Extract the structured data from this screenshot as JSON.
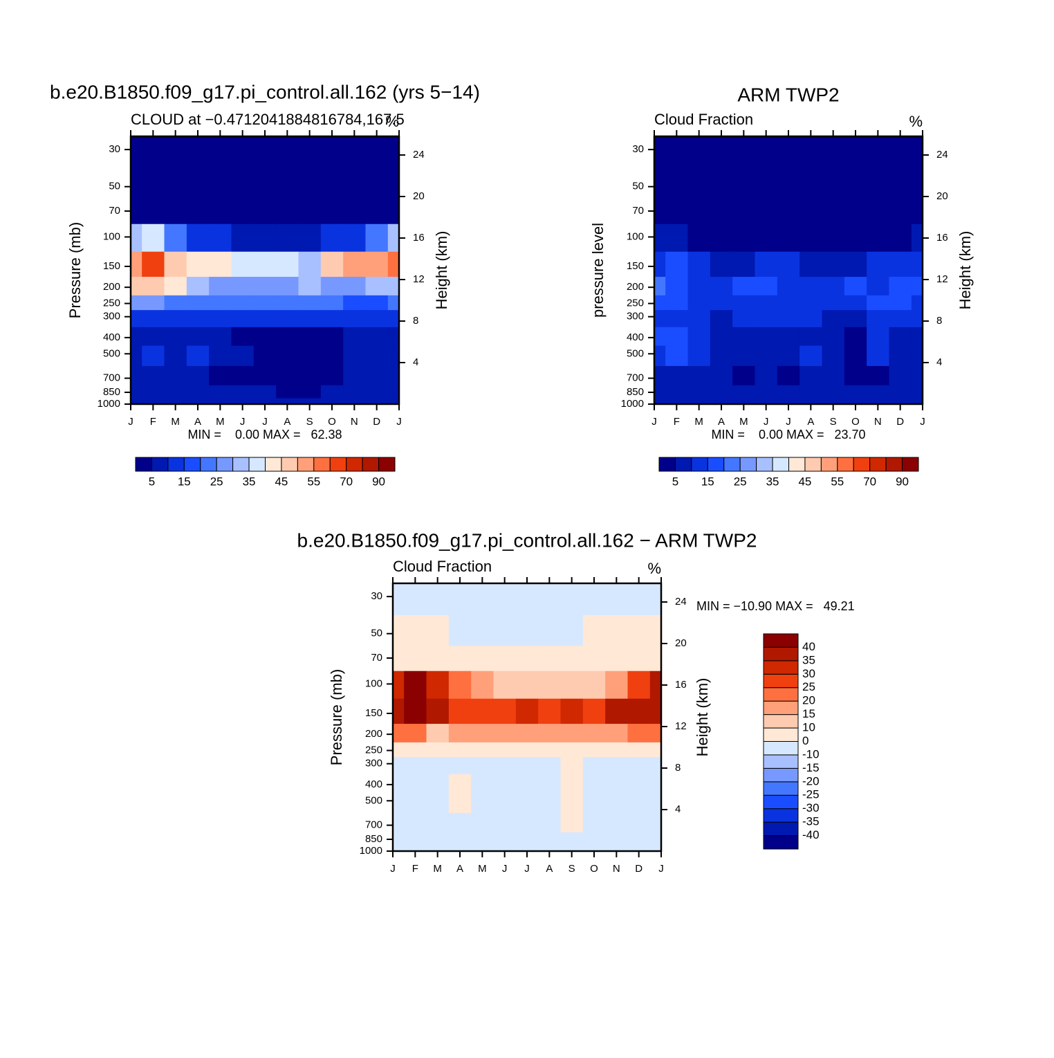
{
  "chart_data": [
    {
      "type": "contour",
      "title": "b.e20.B1850.f09_g17.pi_control.all.162 (yrs 5−14)",
      "subtitle_left": "CLOUD at −0.4712041884816784,167.5",
      "subtitle_right": "%",
      "stats": "MIN =    0.00 MAX =   62.38",
      "ylabel": "Pressure (mb)",
      "y2label": "Height (km)",
      "categories": [
        "J",
        "F",
        "M",
        "A",
        "M",
        "J",
        "J",
        "A",
        "S",
        "O",
        "N",
        "D",
        "J"
      ],
      "y": [
        30,
        50,
        70,
        100,
        150,
        200,
        250,
        300,
        400,
        500,
        700,
        850,
        1000
      ],
      "z": [
        [
          0,
          0,
          0,
          0,
          0,
          0,
          0,
          0,
          0,
          0,
          0,
          0,
          0
        ],
        [
          0,
          0,
          0,
          0,
          0,
          0,
          0,
          0,
          0,
          0,
          0,
          0,
          0
        ],
        [
          2,
          2,
          2,
          2,
          2,
          2,
          2,
          2,
          2,
          2,
          2,
          2,
          2
        ],
        [
          30,
          35,
          20,
          12,
          10,
          8,
          8,
          8,
          8,
          10,
          12,
          20,
          30
        ],
        [
          50,
          62,
          45,
          42,
          42,
          38,
          36,
          35,
          33,
          45,
          50,
          52,
          55
        ],
        [
          45,
          48,
          40,
          30,
          28,
          27,
          25,
          28,
          30,
          25,
          28,
          30,
          32
        ],
        [
          25,
          28,
          20,
          20,
          22,
          22,
          22,
          22,
          24,
          20,
          18,
          18,
          20
        ],
        [
          12,
          12,
          10,
          12,
          13,
          14,
          14,
          14,
          13,
          12,
          12,
          12,
          12
        ],
        [
          8,
          8,
          8,
          8,
          8,
          3,
          3,
          3,
          3,
          3,
          8,
          8,
          8
        ],
        [
          8,
          12,
          8,
          12,
          8,
          8,
          3,
          3,
          3,
          3,
          8,
          8,
          8
        ],
        [
          8,
          8,
          8,
          8,
          3,
          3,
          3,
          3,
          3,
          3,
          8,
          8,
          8
        ],
        [
          8,
          8,
          8,
          8,
          8,
          8,
          8,
          3,
          3,
          8,
          8,
          8,
          8
        ],
        [
          8,
          8,
          8,
          8,
          8,
          8,
          8,
          8,
          8,
          8,
          8,
          8,
          8
        ]
      ],
      "ylim": [
        1000,
        25
      ],
      "log_y": true,
      "yticks": [
        30,
        50,
        70,
        100,
        150,
        200,
        250,
        300,
        400,
        500,
        700,
        850,
        1000
      ],
      "y2lim": [
        0,
        25.8
      ],
      "y2ticks": [
        4,
        8,
        12,
        16,
        20,
        24
      ],
      "colorbar": {
        "orientation": "horizontal",
        "label_stride": 2,
        "levels": [
          5,
          10,
          15,
          20,
          25,
          30,
          35,
          40,
          45,
          50,
          55,
          60,
          70,
          80,
          90
        ],
        "colors": [
          "#00008a",
          "#0019b0",
          "#0a33e0",
          "#1a4dff",
          "#4477ff",
          "#7799ff",
          "#a8c0ff",
          "#d6e8ff",
          "#ffe8d6",
          "#ffcbb0",
          "#ffa07a",
          "#ff7040",
          "#f04010",
          "#d02800",
          "#b01800",
          "#8b0000"
        ]
      }
    },
    {
      "type": "contour",
      "title": "ARM TWP2",
      "subtitle_left": "Cloud Fraction",
      "subtitle_right": "%",
      "stats": "MIN =    0.00 MAX =   23.70",
      "ylabel": "pressure level",
      "y2label": "Height (km)",
      "categories": [
        "J",
        "F",
        "M",
        "A",
        "M",
        "J",
        "J",
        "A",
        "S",
        "O",
        "N",
        "D",
        "J"
      ],
      "y": [
        30,
        50,
        70,
        100,
        150,
        200,
        250,
        300,
        400,
        500,
        700,
        850,
        1000
      ],
      "z": [
        [
          0,
          0,
          0,
          0,
          0,
          0,
          0,
          0,
          0,
          0,
          0,
          0,
          0
        ],
        [
          0,
          0,
          0,
          0,
          0,
          0,
          0,
          0,
          0,
          0,
          0,
          0,
          0
        ],
        [
          1,
          1,
          1,
          1,
          1,
          1,
          1,
          1,
          1,
          1,
          1,
          1,
          1
        ],
        [
          7,
          7,
          4,
          2,
          2,
          2,
          2,
          2,
          2,
          2,
          2,
          4,
          7
        ],
        [
          12,
          16,
          12,
          8,
          8,
          12,
          12,
          8,
          7,
          8,
          12,
          12,
          12
        ],
        [
          22,
          18,
          12,
          12,
          16,
          18,
          12,
          12,
          12,
          16,
          12,
          16,
          16
        ],
        [
          17,
          16,
          12,
          12,
          12,
          12,
          12,
          12,
          12,
          12,
          16,
          16,
          12
        ],
        [
          12,
          12,
          12,
          8,
          12,
          12,
          12,
          12,
          8,
          8,
          12,
          12,
          12
        ],
        [
          16,
          16,
          12,
          8,
          8,
          8,
          8,
          8,
          8,
          3,
          12,
          8,
          8
        ],
        [
          12,
          16,
          12,
          8,
          8,
          8,
          8,
          12,
          8,
          3,
          12,
          8,
          8
        ],
        [
          8,
          8,
          8,
          8,
          3,
          8,
          3,
          8,
          8,
          3,
          3,
          8,
          8
        ],
        [
          8,
          8,
          8,
          8,
          8,
          8,
          8,
          8,
          8,
          8,
          8,
          8,
          8
        ],
        [
          8,
          8,
          8,
          8,
          8,
          8,
          8,
          8,
          8,
          8,
          8,
          8,
          8
        ]
      ],
      "ylim": [
        1000,
        25
      ],
      "log_y": true,
      "yticks": [
        30,
        50,
        70,
        100,
        150,
        200,
        250,
        300,
        400,
        500,
        700,
        850,
        1000
      ],
      "y2lim": [
        0,
        25.8
      ],
      "y2ticks": [
        4,
        8,
        12,
        16,
        20,
        24
      ],
      "colorbar": {
        "orientation": "horizontal",
        "label_stride": 2,
        "levels": [
          5,
          10,
          15,
          20,
          25,
          30,
          35,
          40,
          45,
          50,
          55,
          60,
          70,
          80,
          90
        ],
        "colors": [
          "#00008a",
          "#0019b0",
          "#0a33e0",
          "#1a4dff",
          "#4477ff",
          "#7799ff",
          "#a8c0ff",
          "#d6e8ff",
          "#ffe8d6",
          "#ffcbb0",
          "#ffa07a",
          "#ff7040",
          "#f04010",
          "#d02800",
          "#b01800",
          "#8b0000"
        ]
      }
    },
    {
      "type": "contour",
      "title": "b.e20.B1850.f09_g17.pi_control.all.162 − ARM TWP2",
      "subtitle_left": "Cloud Fraction",
      "subtitle_right": "%",
      "stats": "MIN = −10.90 MAX =   49.21",
      "ylabel": "Pressure (mb)",
      "y2label": "Height (km)",
      "categories": [
        "J",
        "F",
        "M",
        "A",
        "M",
        "J",
        "J",
        "A",
        "S",
        "O",
        "N",
        "D",
        "J"
      ],
      "y": [
        30,
        50,
        70,
        100,
        150,
        200,
        250,
        300,
        400,
        500,
        700,
        850,
        1000
      ],
      "z": [
        [
          -2,
          -2,
          -2,
          -2,
          -2,
          -2,
          -2,
          -2,
          -2,
          -2,
          -2,
          -2,
          -2
        ],
        [
          2,
          2,
          2,
          -2,
          -2,
          -2,
          -2,
          -2,
          -2,
          2,
          2,
          2,
          2
        ],
        [
          5,
          5,
          5,
          5,
          5,
          5,
          5,
          5,
          5,
          5,
          5,
          5,
          5
        ],
        [
          30,
          42,
          30,
          20,
          15,
          12,
          12,
          12,
          12,
          12,
          18,
          28,
          35
        ],
        [
          38,
          42,
          35,
          28,
          25,
          28,
          30,
          25,
          30,
          28,
          35,
          38,
          38
        ],
        [
          20,
          22,
          12,
          18,
          18,
          18,
          18,
          18,
          15,
          18,
          18,
          22,
          20
        ],
        [
          8,
          8,
          3,
          5,
          5,
          5,
          5,
          5,
          5,
          5,
          5,
          5,
          5
        ],
        [
          -3,
          -3,
          -3,
          -3,
          -3,
          -3,
          -3,
          -3,
          3,
          -3,
          -3,
          -3,
          -3
        ],
        [
          -3,
          -3,
          -3,
          3,
          -3,
          -3,
          -3,
          -3,
          3,
          -3,
          -3,
          -3,
          -3
        ],
        [
          -3,
          -3,
          -3,
          3,
          -3,
          -3,
          -3,
          -3,
          3,
          -3,
          -3,
          -3,
          -3
        ],
        [
          -3,
          -3,
          -3,
          -3,
          -3,
          -3,
          -3,
          -3,
          3,
          -3,
          -3,
          -3,
          -3
        ],
        [
          -3,
          -3,
          -3,
          -3,
          -3,
          -3,
          -3,
          -3,
          -3,
          -3,
          -3,
          -3,
          -3
        ],
        [
          -3,
          -3,
          -3,
          -3,
          -3,
          -3,
          -3,
          -3,
          -3,
          -3,
          -3,
          -3,
          -3
        ]
      ],
      "ylim": [
        1000,
        25
      ],
      "log_y": true,
      "yticks": [
        30,
        50,
        70,
        100,
        150,
        200,
        250,
        300,
        400,
        500,
        700,
        850,
        1000
      ],
      "y2lim": [
        0,
        25.8
      ],
      "y2ticks": [
        4,
        8,
        12,
        16,
        20,
        24
      ],
      "colorbar": {
        "orientation": "vertical",
        "label_stride": 1,
        "levels": [
          -40,
          -35,
          -30,
          -25,
          -20,
          -15,
          -10,
          0,
          10,
          15,
          20,
          25,
          30,
          35,
          40
        ],
        "colors": [
          "#00008a",
          "#0019b0",
          "#0a33e0",
          "#1a4dff",
          "#4477ff",
          "#7799ff",
          "#a8c0ff",
          "#d6e8ff",
          "#ffe8d6",
          "#ffcbb0",
          "#ffa07a",
          "#ff7040",
          "#f04010",
          "#d02800",
          "#b01800",
          "#8b0000"
        ]
      }
    }
  ]
}
